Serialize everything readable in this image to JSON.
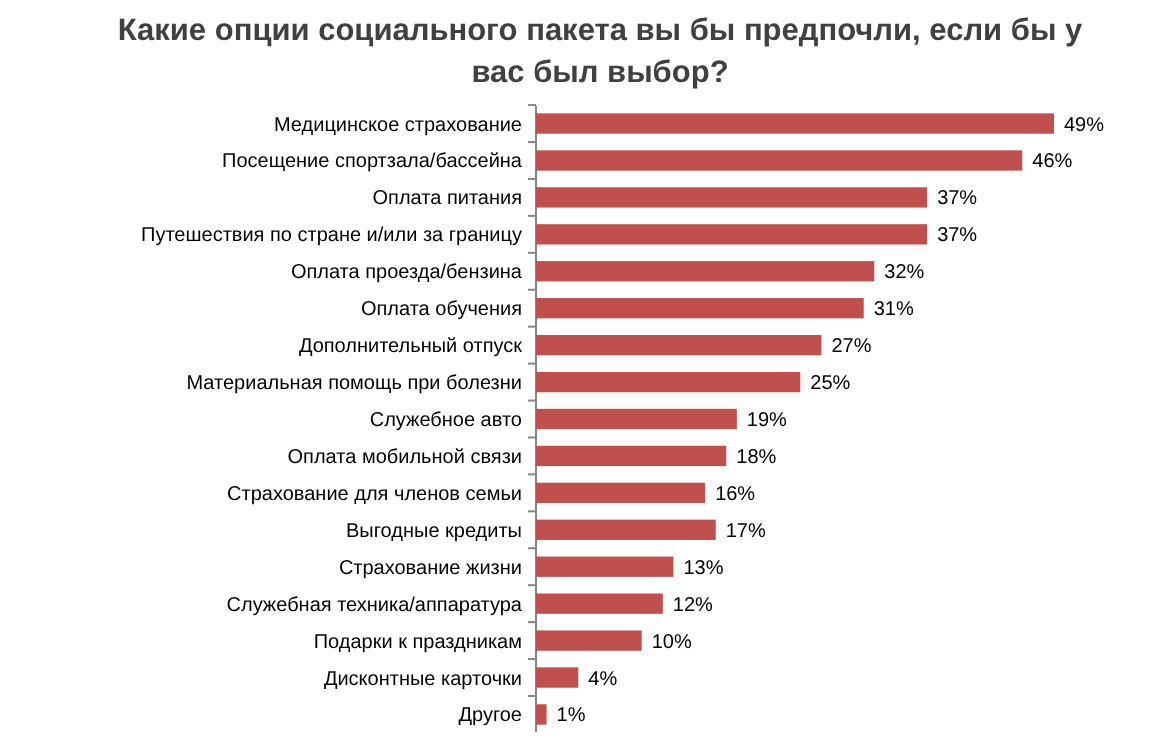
{
  "chart_data": {
    "type": "bar",
    "orientation": "horizontal",
    "title": "Какие опции социального пакета вы бы предпочли, если бы у вас был выбор?",
    "categories": [
      "Медицинское страхование",
      "Посещение спортзала/бассейна",
      "Оплата питания",
      "Путешествия по стране и/или за границу",
      "Оплата проезда/бензина",
      "Оплата обучения",
      "Дополнительный отпуск",
      "Материальная помощь при болезни",
      "Служебное авто",
      "Оплата мобильной связи",
      "Страхование для членов семьи",
      "Выгодные кредиты",
      "Страхование жизни",
      "Служебная техника/аппаратура",
      "Подарки к праздникам",
      "Дисконтные карточки",
      "Другое"
    ],
    "values": [
      49,
      46,
      37,
      37,
      32,
      31,
      27,
      25,
      19,
      18,
      16,
      17,
      13,
      12,
      10,
      4,
      1
    ],
    "value_labels": [
      "49%",
      "46%",
      "37%",
      "37%",
      "32%",
      "31%",
      "27%",
      "25%",
      "19%",
      "18%",
      "16%",
      "17%",
      "13%",
      "12%",
      "10%",
      "4%",
      "1%"
    ],
    "color": "#c0504d"
  }
}
